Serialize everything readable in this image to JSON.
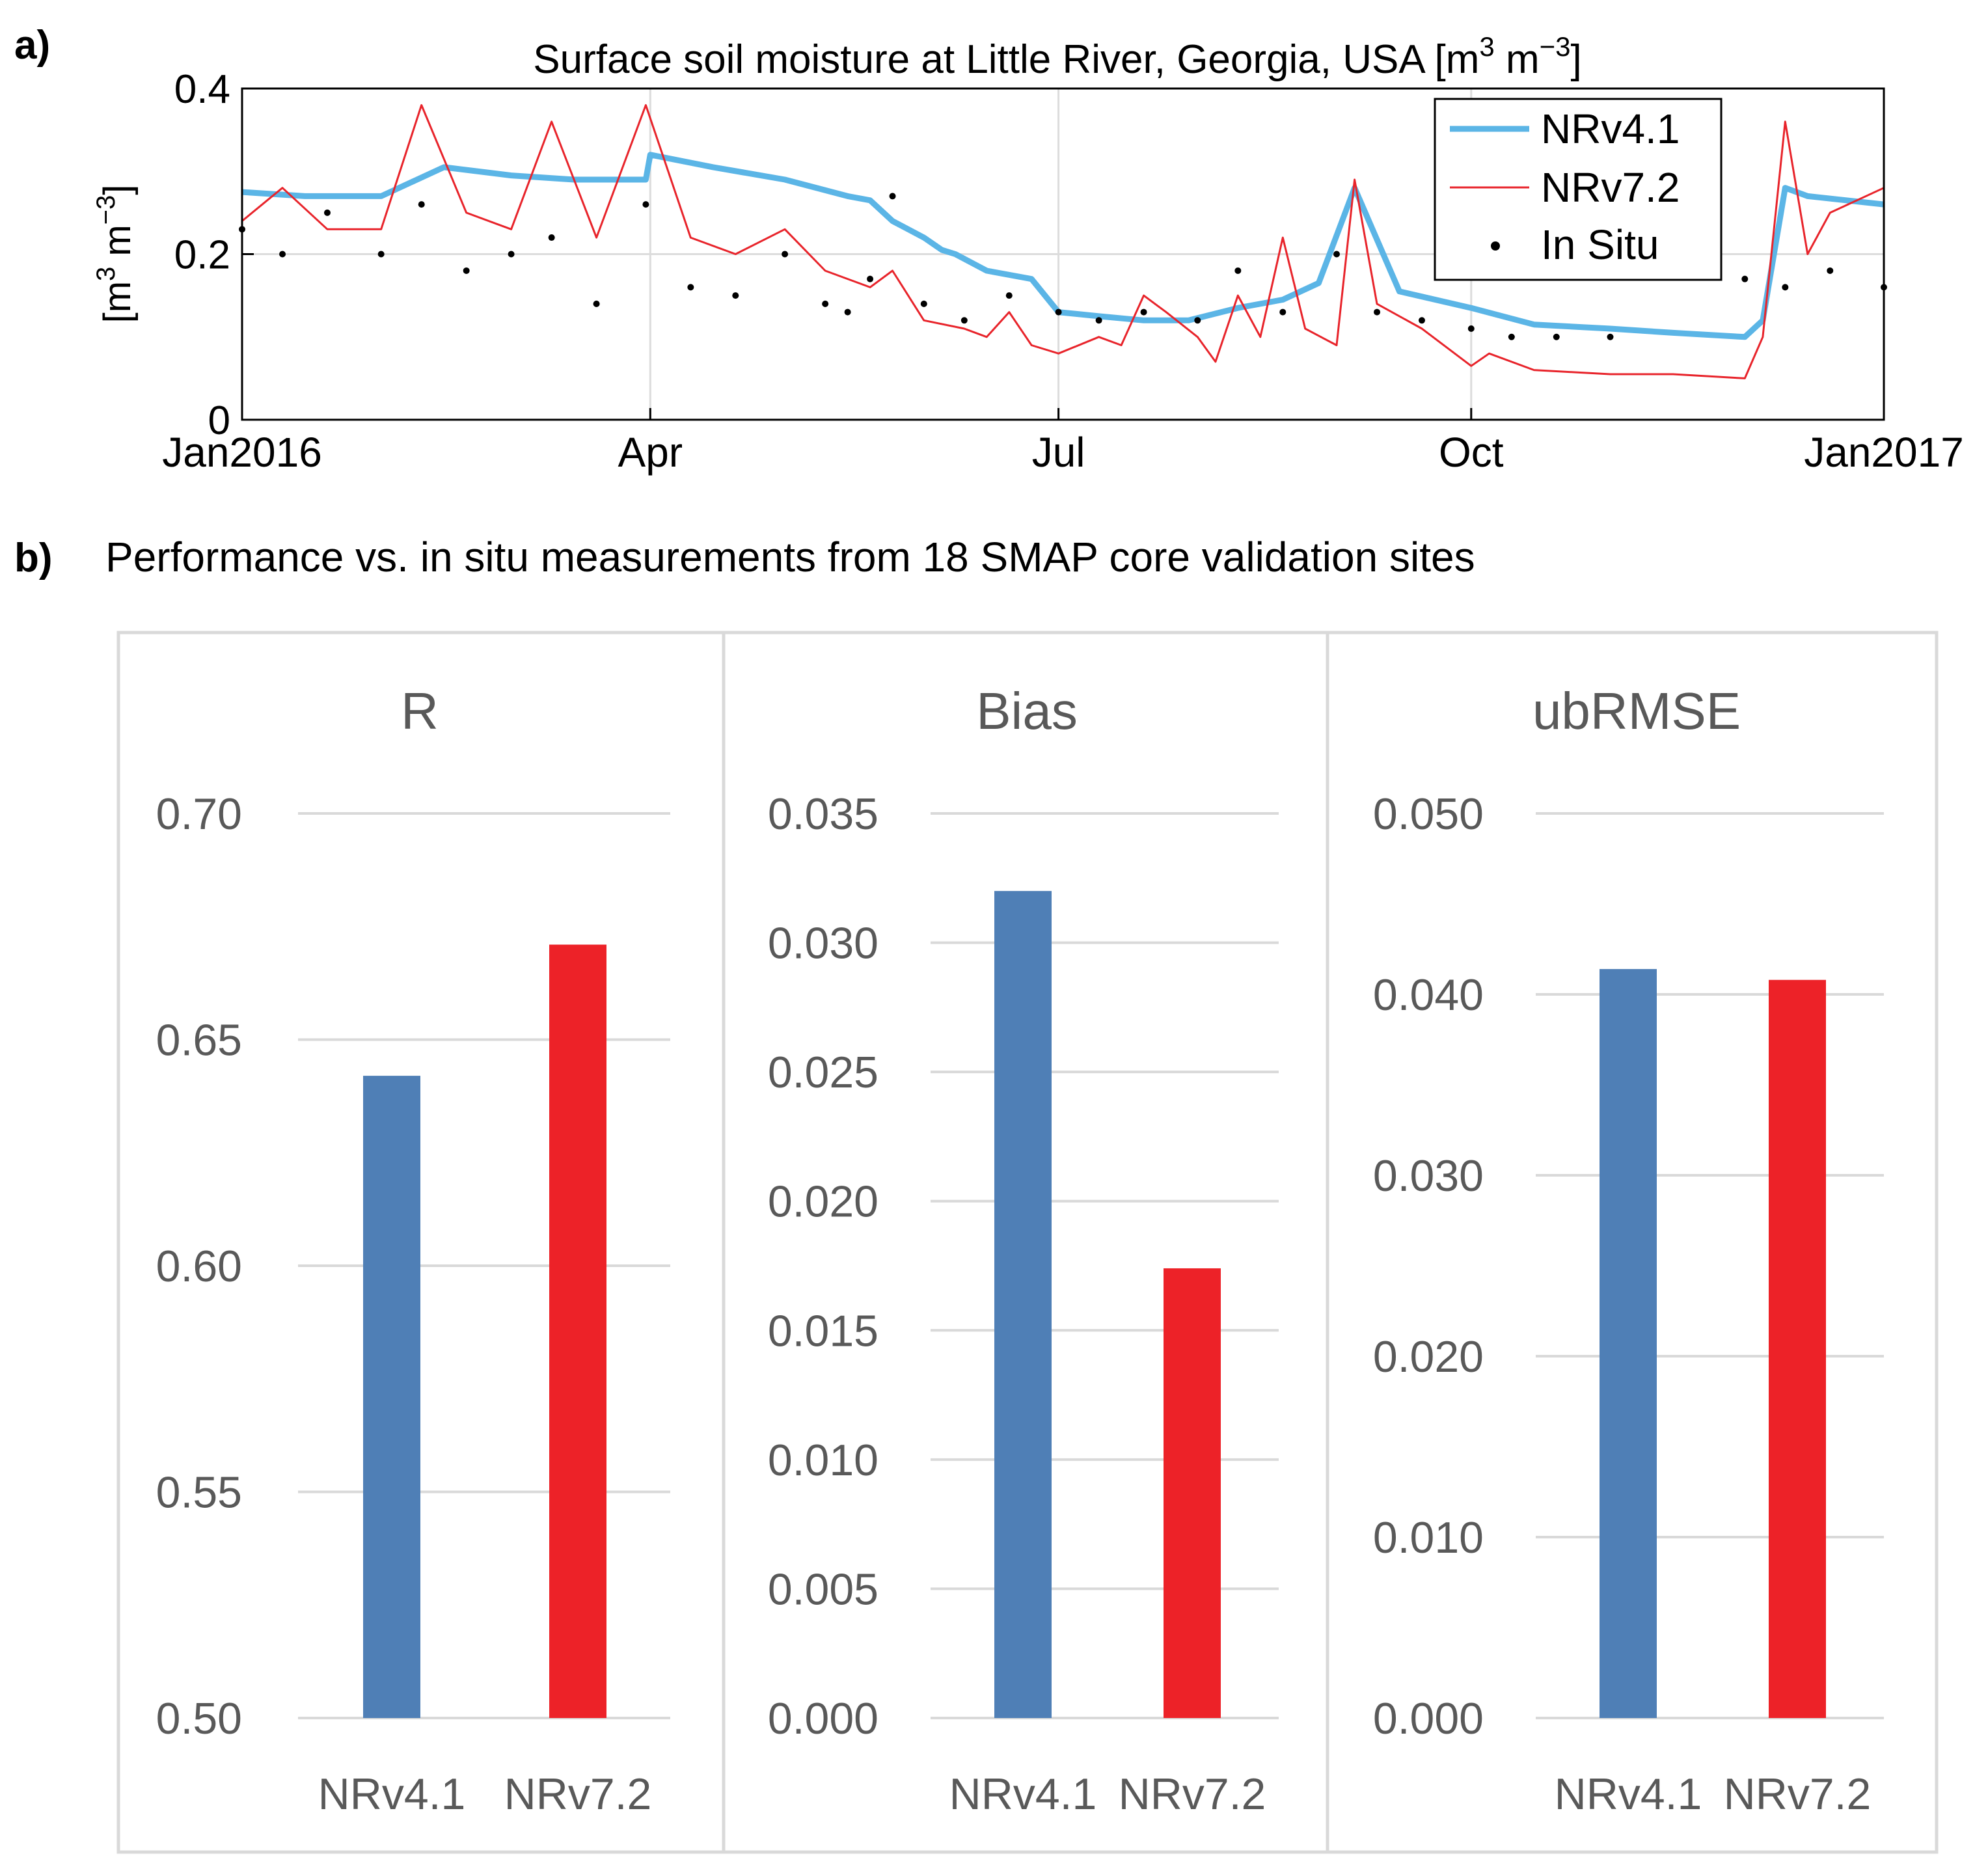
{
  "panel_a": {
    "letter": "a)",
    "title": "Surface soil moisture at Little River, Georgia, USA [m",
    "title_sup1": "3",
    "title_mid": " m",
    "title_sup2": "−3",
    "title_end": "]",
    "ylabel_parts": [
      "[m",
      "3",
      " m",
      "−3",
      "]"
    ]
  },
  "panel_b": {
    "letter": "b)",
    "title": "Performance vs. in situ measurements from 18 SMAP core validation sites"
  },
  "colors": {
    "nrv41_line": "#5bb5e6",
    "nrv72_line": "#e8242b",
    "insitu": "#000000",
    "bar_blue": "#4f7fb6",
    "bar_red": "#ed2228"
  },
  "chart_data": [
    {
      "type": "line",
      "ylim": [
        0,
        0.4
      ],
      "yticks": [
        0,
        0.2,
        0.4
      ],
      "ytick_labels": [
        "0",
        "0.2",
        "0.4"
      ],
      "xlim": [
        "2016-01-01",
        "2017-01-01"
      ],
      "xtick_labels": [
        "Jan2016",
        "Apr",
        "Jul",
        "Oct",
        "Jan2017"
      ],
      "xtick_dates": [
        "2016-01-01",
        "2016-04-01",
        "2016-07-01",
        "2016-10-01",
        "2017-01-01"
      ],
      "grid": true,
      "legend_position": "top-right",
      "legend": [
        "NRv4.1",
        "NRv7.2",
        "In Situ"
      ],
      "series": [
        {
          "name": "NRv4.1",
          "x": [
            "2016-01-01",
            "2016-01-15",
            "2016-02-01",
            "2016-02-15",
            "2016-03-01",
            "2016-03-15",
            "2016-03-31",
            "2016-04-01",
            "2016-04-15",
            "2016-05-01",
            "2016-05-15",
            "2016-05-20",
            "2016-05-25",
            "2016-06-01",
            "2016-06-05",
            "2016-06-08",
            "2016-06-15",
            "2016-06-25",
            "2016-07-01",
            "2016-07-10",
            "2016-07-20",
            "2016-07-30",
            "2016-08-10",
            "2016-08-20",
            "2016-08-28",
            "2016-09-05",
            "2016-09-15",
            "2016-10-01",
            "2016-10-15",
            "2016-11-01",
            "2016-11-15",
            "2016-12-01",
            "2016-12-05",
            "2016-12-10",
            "2016-12-15",
            "2017-01-01"
          ],
          "y": [
            0.275,
            0.27,
            0.27,
            0.305,
            0.295,
            0.29,
            0.29,
            0.32,
            0.305,
            0.29,
            0.27,
            0.265,
            0.24,
            0.22,
            0.205,
            0.2,
            0.18,
            0.17,
            0.13,
            0.125,
            0.12,
            0.12,
            0.135,
            0.145,
            0.165,
            0.28,
            0.155,
            0.135,
            0.115,
            0.11,
            0.105,
            0.1,
            0.12,
            0.28,
            0.27,
            0.26
          ]
        },
        {
          "name": "NRv7.2",
          "x": [
            "2016-01-01",
            "2016-01-10",
            "2016-01-20",
            "2016-02-01",
            "2016-02-10",
            "2016-02-20",
            "2016-03-01",
            "2016-03-10",
            "2016-03-20",
            "2016-03-31",
            "2016-04-10",
            "2016-04-20",
            "2016-05-01",
            "2016-05-10",
            "2016-05-20",
            "2016-05-25",
            "2016-06-01",
            "2016-06-10",
            "2016-06-15",
            "2016-06-20",
            "2016-06-25",
            "2016-07-01",
            "2016-07-10",
            "2016-07-15",
            "2016-07-20",
            "2016-07-25",
            "2016-08-01",
            "2016-08-05",
            "2016-08-10",
            "2016-08-15",
            "2016-08-20",
            "2016-08-25",
            "2016-09-01",
            "2016-09-05",
            "2016-09-10",
            "2016-09-20",
            "2016-10-01",
            "2016-10-05",
            "2016-10-15",
            "2016-11-01",
            "2016-11-15",
            "2016-12-01",
            "2016-12-05",
            "2016-12-10",
            "2016-12-15",
            "2016-12-20",
            "2017-01-01"
          ],
          "y": [
            0.24,
            0.28,
            0.23,
            0.23,
            0.38,
            0.25,
            0.23,
            0.36,
            0.22,
            0.38,
            0.22,
            0.2,
            0.23,
            0.18,
            0.16,
            0.18,
            0.12,
            0.11,
            0.1,
            0.13,
            0.09,
            0.08,
            0.1,
            0.09,
            0.15,
            0.13,
            0.1,
            0.07,
            0.15,
            0.1,
            0.22,
            0.11,
            0.09,
            0.29,
            0.14,
            0.11,
            0.065,
            0.08,
            0.06,
            0.055,
            0.055,
            0.05,
            0.1,
            0.36,
            0.2,
            0.25,
            0.28
          ]
        },
        {
          "name": "In Situ",
          "x": [
            "2016-01-01",
            "2016-01-10",
            "2016-01-20",
            "2016-02-01",
            "2016-02-10",
            "2016-02-20",
            "2016-03-01",
            "2016-03-10",
            "2016-03-20",
            "2016-03-31",
            "2016-04-10",
            "2016-04-20",
            "2016-05-01",
            "2016-05-10",
            "2016-05-15",
            "2016-05-20",
            "2016-05-25",
            "2016-06-01",
            "2016-06-10",
            "2016-06-20",
            "2016-07-01",
            "2016-07-10",
            "2016-07-20",
            "2016-08-01",
            "2016-08-10",
            "2016-08-20",
            "2016-09-01",
            "2016-09-10",
            "2016-09-20",
            "2016-10-01",
            "2016-10-10",
            "2016-10-20",
            "2016-11-01",
            "2016-12-01",
            "2016-12-10",
            "2016-12-20",
            "2017-01-01"
          ],
          "y": [
            0.23,
            0.2,
            0.25,
            0.2,
            0.26,
            0.18,
            0.2,
            0.22,
            0.14,
            0.26,
            0.16,
            0.15,
            0.2,
            0.14,
            0.13,
            0.17,
            0.27,
            0.14,
            0.12,
            0.15,
            0.13,
            0.12,
            0.13,
            0.12,
            0.18,
            0.13,
            0.2,
            0.13,
            0.12,
            0.11,
            0.1,
            0.1,
            0.1,
            0.17,
            0.16,
            0.18,
            0.16
          ]
        }
      ]
    },
    {
      "type": "bar",
      "title": "R",
      "categories": [
        "NRv4.1",
        "NRv7.2"
      ],
      "values": [
        0.642,
        0.671
      ],
      "ylim": [
        0.5,
        0.7
      ],
      "ytick_labels": [
        "0.50",
        "0.55",
        "0.60",
        "0.65",
        "0.70"
      ]
    },
    {
      "type": "bar",
      "title": "Bias",
      "categories": [
        "NRv4.1",
        "NRv7.2"
      ],
      "values": [
        0.032,
        0.0174
      ],
      "ylim": [
        0,
        0.035
      ],
      "ytick_labels": [
        "0.000",
        "0.005",
        "0.010",
        "0.015",
        "0.020",
        "0.025",
        "0.030",
        "0.035"
      ]
    },
    {
      "type": "bar",
      "title": "ubRMSE",
      "categories": [
        "NRv4.1",
        "NRv7.2"
      ],
      "values": [
        0.0414,
        0.0408
      ],
      "ylim": [
        0,
        0.05
      ],
      "ytick_labels": [
        "0.000",
        "0.010",
        "0.020",
        "0.030",
        "0.040",
        "0.050"
      ]
    }
  ]
}
